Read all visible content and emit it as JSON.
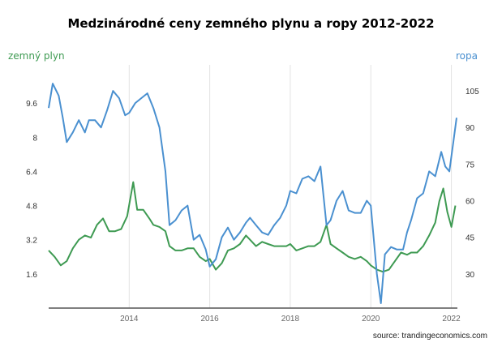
{
  "chart_data": {
    "type": "line",
    "title": "Medzinárodné ceny zemného plynu a ropy 2012-2022",
    "left_axis": {
      "label": "zemný plyn",
      "ticks": [
        1.6,
        3.2,
        4.8,
        6.4,
        8,
        9.6
      ],
      "range": [
        0,
        11.2
      ],
      "color": "#3e9a52"
    },
    "right_axis": {
      "label": "ropa",
      "ticks": [
        30,
        45,
        60,
        75,
        90,
        105
      ],
      "range": [
        16,
        114
      ],
      "color": "#4a90d0"
    },
    "x_ticks": [
      "2014",
      "2016",
      "2018",
      "2020",
      "2022"
    ],
    "x_range": [
      2012.0,
      2022.15
    ],
    "grid": "vertical",
    "series": [
      {
        "name": "zemný plyn",
        "axis": "left",
        "color": "#3e9a52",
        "points": [
          [
            2012.0,
            2.7
          ],
          [
            2012.15,
            2.4
          ],
          [
            2012.3,
            2.0
          ],
          [
            2012.45,
            2.2
          ],
          [
            2012.6,
            2.8
          ],
          [
            2012.75,
            3.2
          ],
          [
            2012.9,
            3.4
          ],
          [
            2013.05,
            3.3
          ],
          [
            2013.2,
            3.9
          ],
          [
            2013.35,
            4.2
          ],
          [
            2013.5,
            3.6
          ],
          [
            2013.65,
            3.6
          ],
          [
            2013.8,
            3.7
          ],
          [
            2013.95,
            4.3
          ],
          [
            2014.1,
            5.9
          ],
          [
            2014.2,
            4.6
          ],
          [
            2014.35,
            4.6
          ],
          [
            2014.5,
            4.2
          ],
          [
            2014.6,
            3.9
          ],
          [
            2014.75,
            3.8
          ],
          [
            2014.9,
            3.6
          ],
          [
            2015.0,
            2.9
          ],
          [
            2015.15,
            2.7
          ],
          [
            2015.3,
            2.7
          ],
          [
            2015.45,
            2.8
          ],
          [
            2015.6,
            2.8
          ],
          [
            2015.75,
            2.4
          ],
          [
            2015.9,
            2.2
          ],
          [
            2016.0,
            2.3
          ],
          [
            2016.15,
            1.8
          ],
          [
            2016.3,
            2.1
          ],
          [
            2016.45,
            2.7
          ],
          [
            2016.6,
            2.8
          ],
          [
            2016.75,
            3.0
          ],
          [
            2016.9,
            3.4
          ],
          [
            2017.0,
            3.2
          ],
          [
            2017.15,
            2.9
          ],
          [
            2017.3,
            3.1
          ],
          [
            2017.45,
            3.0
          ],
          [
            2017.6,
            2.9
          ],
          [
            2017.75,
            2.9
          ],
          [
            2017.9,
            2.9
          ],
          [
            2018.0,
            3.0
          ],
          [
            2018.15,
            2.7
          ],
          [
            2018.3,
            2.8
          ],
          [
            2018.45,
            2.9
          ],
          [
            2018.6,
            2.9
          ],
          [
            2018.75,
            3.1
          ],
          [
            2018.9,
            3.9
          ],
          [
            2019.0,
            3.0
          ],
          [
            2019.15,
            2.8
          ],
          [
            2019.3,
            2.6
          ],
          [
            2019.45,
            2.4
          ],
          [
            2019.6,
            2.3
          ],
          [
            2019.75,
            2.4
          ],
          [
            2019.9,
            2.2
          ],
          [
            2020.0,
            2.0
          ],
          [
            2020.15,
            1.8
          ],
          [
            2020.3,
            1.7
          ],
          [
            2020.45,
            1.8
          ],
          [
            2020.6,
            2.2
          ],
          [
            2020.75,
            2.6
          ],
          [
            2020.9,
            2.5
          ],
          [
            2021.0,
            2.6
          ],
          [
            2021.15,
            2.6
          ],
          [
            2021.3,
            2.9
          ],
          [
            2021.45,
            3.4
          ],
          [
            2021.6,
            4.0
          ],
          [
            2021.7,
            5.0
          ],
          [
            2021.8,
            5.6
          ],
          [
            2021.9,
            4.5
          ],
          [
            2022.0,
            3.8
          ],
          [
            2022.1,
            4.8
          ]
        ]
      },
      {
        "name": "ropa",
        "axis": "right",
        "color": "#4a90d0",
        "points": [
          [
            2012.0,
            98
          ],
          [
            2012.1,
            108
          ],
          [
            2012.25,
            103
          ],
          [
            2012.35,
            94
          ],
          [
            2012.45,
            84
          ],
          [
            2012.6,
            88
          ],
          [
            2012.75,
            93
          ],
          [
            2012.9,
            88
          ],
          [
            2013.0,
            93
          ],
          [
            2013.15,
            93
          ],
          [
            2013.3,
            90
          ],
          [
            2013.45,
            97
          ],
          [
            2013.6,
            105
          ],
          [
            2013.75,
            102
          ],
          [
            2013.9,
            95
          ],
          [
            2014.0,
            96
          ],
          [
            2014.15,
            100
          ],
          [
            2014.3,
            102
          ],
          [
            2014.45,
            104
          ],
          [
            2014.6,
            98
          ],
          [
            2014.75,
            90
          ],
          [
            2014.9,
            72
          ],
          [
            2015.0,
            50
          ],
          [
            2015.15,
            52
          ],
          [
            2015.3,
            56
          ],
          [
            2015.45,
            58
          ],
          [
            2015.6,
            44
          ],
          [
            2015.75,
            46
          ],
          [
            2015.9,
            40
          ],
          [
            2016.0,
            33
          ],
          [
            2016.15,
            36
          ],
          [
            2016.3,
            45
          ],
          [
            2016.45,
            49
          ],
          [
            2016.6,
            44
          ],
          [
            2016.75,
            47
          ],
          [
            2016.9,
            51
          ],
          [
            2017.0,
            53
          ],
          [
            2017.15,
            50
          ],
          [
            2017.3,
            47
          ],
          [
            2017.45,
            46
          ],
          [
            2017.6,
            50
          ],
          [
            2017.75,
            53
          ],
          [
            2017.9,
            58
          ],
          [
            2018.0,
            64
          ],
          [
            2018.15,
            63
          ],
          [
            2018.3,
            69
          ],
          [
            2018.45,
            70
          ],
          [
            2018.6,
            68
          ],
          [
            2018.75,
            74
          ],
          [
            2018.9,
            50
          ],
          [
            2019.0,
            52
          ],
          [
            2019.15,
            60
          ],
          [
            2019.3,
            64
          ],
          [
            2019.45,
            56
          ],
          [
            2019.6,
            55
          ],
          [
            2019.75,
            55
          ],
          [
            2019.9,
            60
          ],
          [
            2020.0,
            58
          ],
          [
            2020.15,
            30
          ],
          [
            2020.25,
            18
          ],
          [
            2020.35,
            38
          ],
          [
            2020.5,
            41
          ],
          [
            2020.65,
            40
          ],
          [
            2020.8,
            40
          ],
          [
            2020.9,
            47
          ],
          [
            2021.0,
            52
          ],
          [
            2021.15,
            61
          ],
          [
            2021.3,
            63
          ],
          [
            2021.45,
            72
          ],
          [
            2021.6,
            70
          ],
          [
            2021.75,
            80
          ],
          [
            2021.85,
            74
          ],
          [
            2021.95,
            72
          ],
          [
            2022.05,
            84
          ],
          [
            2022.13,
            94
          ]
        ]
      }
    ]
  },
  "source": "source: trandingeconomics.com"
}
